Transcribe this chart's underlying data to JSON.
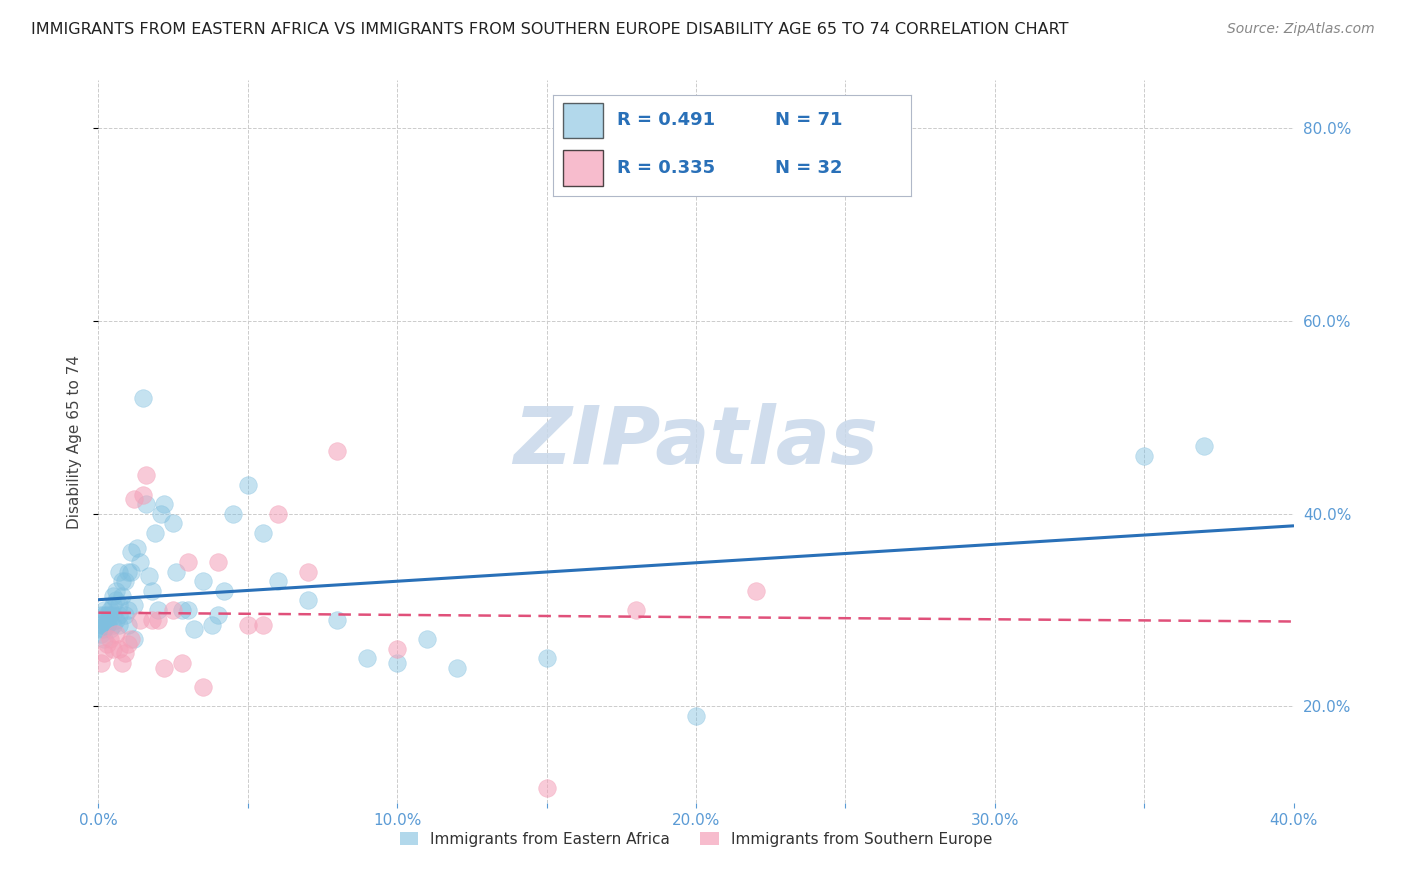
{
  "title": "IMMIGRANTS FROM EASTERN AFRICA VS IMMIGRANTS FROM SOUTHERN EUROPE DISABILITY AGE 65 TO 74 CORRELATION CHART",
  "source": "Source: ZipAtlas.com",
  "ylabel": "Disability Age 65 to 74",
  "xlim": [
    0.0,
    0.4
  ],
  "ylim": [
    0.1,
    0.85
  ],
  "xticks": [
    0.0,
    0.05,
    0.1,
    0.15,
    0.2,
    0.25,
    0.3,
    0.35,
    0.4
  ],
  "xtick_labels": [
    "0.0%",
    "",
    "10.0%",
    "",
    "20.0%",
    "",
    "30.0%",
    "",
    "40.0%"
  ],
  "yticks": [
    0.2,
    0.4,
    0.6,
    0.8
  ],
  "series1_color": "#7fbfdf",
  "series1_label": "Immigrants from Eastern Africa",
  "series1_R": 0.491,
  "series1_N": 71,
  "series2_color": "#f4a0b8",
  "series2_label": "Immigrants from Southern Europe",
  "series2_R": 0.335,
  "series2_N": 32,
  "series1_x": [
    0.001,
    0.001,
    0.001,
    0.001,
    0.002,
    0.002,
    0.002,
    0.002,
    0.002,
    0.003,
    0.003,
    0.003,
    0.003,
    0.004,
    0.004,
    0.004,
    0.005,
    0.005,
    0.005,
    0.005,
    0.006,
    0.006,
    0.006,
    0.007,
    0.007,
    0.007,
    0.007,
    0.008,
    0.008,
    0.009,
    0.009,
    0.01,
    0.01,
    0.01,
    0.011,
    0.011,
    0.012,
    0.012,
    0.013,
    0.014,
    0.015,
    0.016,
    0.017,
    0.018,
    0.019,
    0.02,
    0.021,
    0.022,
    0.025,
    0.026,
    0.028,
    0.03,
    0.032,
    0.035,
    0.038,
    0.04,
    0.042,
    0.045,
    0.05,
    0.055,
    0.06,
    0.07,
    0.08,
    0.09,
    0.1,
    0.11,
    0.12,
    0.15,
    0.2,
    0.35,
    0.37
  ],
  "series1_y": [
    0.285,
    0.275,
    0.28,
    0.295,
    0.27,
    0.28,
    0.285,
    0.295,
    0.3,
    0.285,
    0.29,
    0.295,
    0.285,
    0.28,
    0.3,
    0.295,
    0.285,
    0.295,
    0.305,
    0.315,
    0.29,
    0.31,
    0.32,
    0.285,
    0.295,
    0.305,
    0.34,
    0.315,
    0.33,
    0.295,
    0.33,
    0.285,
    0.3,
    0.34,
    0.34,
    0.36,
    0.27,
    0.305,
    0.365,
    0.35,
    0.52,
    0.41,
    0.335,
    0.32,
    0.38,
    0.3,
    0.4,
    0.41,
    0.39,
    0.34,
    0.3,
    0.3,
    0.28,
    0.33,
    0.285,
    0.295,
    0.32,
    0.4,
    0.43,
    0.38,
    0.33,
    0.31,
    0.29,
    0.25,
    0.245,
    0.27,
    0.24,
    0.25,
    0.19,
    0.46,
    0.47
  ],
  "series2_x": [
    0.001,
    0.002,
    0.003,
    0.004,
    0.005,
    0.006,
    0.007,
    0.008,
    0.009,
    0.01,
    0.011,
    0.012,
    0.014,
    0.015,
    0.016,
    0.018,
    0.02,
    0.022,
    0.025,
    0.028,
    0.03,
    0.035,
    0.04,
    0.05,
    0.055,
    0.06,
    0.07,
    0.08,
    0.1,
    0.15,
    0.18,
    0.22
  ],
  "series2_y": [
    0.245,
    0.255,
    0.265,
    0.27,
    0.26,
    0.275,
    0.26,
    0.245,
    0.255,
    0.265,
    0.27,
    0.415,
    0.29,
    0.42,
    0.44,
    0.29,
    0.29,
    0.24,
    0.3,
    0.245,
    0.35,
    0.22,
    0.35,
    0.285,
    0.285,
    0.4,
    0.34,
    0.465,
    0.26,
    0.115,
    0.3,
    0.32
  ],
  "line1_color": "#2970b8",
  "line2_color": "#e0507a",
  "watermark": "ZIPatlas",
  "watermark_color": "#c8d8ea",
  "background_color": "#ffffff",
  "grid_color": "#cccccc",
  "tick_color": "#5b9bd5",
  "title_fontsize": 11.5,
  "axis_label_fontsize": 11,
  "tick_fontsize": 11,
  "legend_fontsize": 13,
  "source_fontsize": 10
}
